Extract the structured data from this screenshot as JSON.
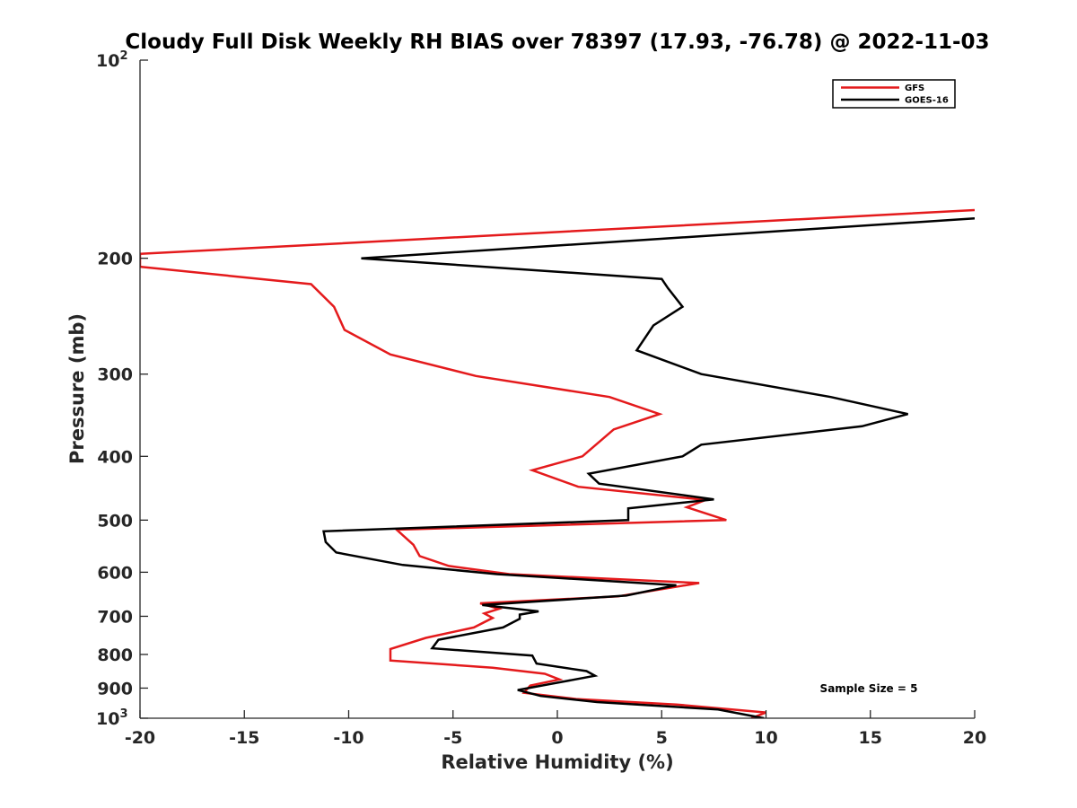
{
  "chart_data": {
    "type": "line",
    "title": "Cloudy Full Disk Weekly RH BIAS over 78397 (17.93, -76.78) @ 2022-11-03",
    "xlabel": "Relative Humidity (%)",
    "ylabel": "Pressure (mb)",
    "xlim": [
      -20,
      20
    ],
    "ylim": [
      100,
      1000
    ],
    "y_scale": "log",
    "y_reversed": true,
    "x_ticks": [
      "-20",
      "-15",
      "-10",
      "-5",
      "0",
      "5",
      "10",
      "15",
      "20"
    ],
    "y_ticks": [
      {
        "value": 100,
        "label": "10",
        "sup": "2"
      },
      {
        "value": 200,
        "label": "200"
      },
      {
        "value": 300,
        "label": "300"
      },
      {
        "value": 400,
        "label": "400"
      },
      {
        "value": 500,
        "label": "500"
      },
      {
        "value": 600,
        "label": "600"
      },
      {
        "value": 700,
        "label": "700"
      },
      {
        "value": 800,
        "label": "800"
      },
      {
        "value": 900,
        "label": "900"
      },
      {
        "value": 1000,
        "label": "10",
        "sup": "3"
      }
    ],
    "grid": false,
    "legend_position": "top-right",
    "annotation": "Sample Size = 5",
    "series": [
      {
        "name": "GFS",
        "color": "#e41a1c",
        "points": [
          [
            20.0,
            169
          ],
          [
            -20.0,
            197
          ],
          [
            -20.0,
            206
          ],
          [
            -11.8,
            219
          ],
          [
            -10.7,
            237
          ],
          [
            -10.2,
            257
          ],
          [
            -8.0,
            280
          ],
          [
            -3.9,
            302
          ],
          [
            2.5,
            325
          ],
          [
            4.9,
            345
          ],
          [
            2.7,
            364
          ],
          [
            1.2,
            400
          ],
          [
            -1.2,
            420
          ],
          [
            1.0,
            445
          ],
          [
            7.1,
            466
          ],
          [
            6.2,
            478
          ],
          [
            8.1,
            500
          ],
          [
            -7.7,
            517
          ],
          [
            -6.9,
            545
          ],
          [
            -6.6,
            567
          ],
          [
            -5.2,
            587
          ],
          [
            -2.3,
            604
          ],
          [
            6.8,
            623
          ],
          [
            2.9,
            653
          ],
          [
            -3.7,
            669
          ],
          [
            -2.8,
            682
          ],
          [
            -3.5,
            693
          ],
          [
            -3.1,
            704
          ],
          [
            -4.0,
            728
          ],
          [
            -6.3,
            755
          ],
          [
            -8.0,
            785
          ],
          [
            -8.0,
            817
          ],
          [
            -3.1,
            838
          ],
          [
            -0.6,
            856
          ],
          [
            0.1,
            873
          ],
          [
            -1.3,
            892
          ],
          [
            -1.6,
            915
          ],
          [
            0.9,
            935
          ],
          [
            5.7,
            953
          ],
          [
            10.0,
            980
          ],
          [
            9.3,
            1000
          ]
        ]
      },
      {
        "name": "GOES-16",
        "color": "#000000",
        "points": [
          [
            20.0,
            174
          ],
          [
            -9.4,
            200
          ],
          [
            5.0,
            215
          ],
          [
            5.3,
            222
          ],
          [
            6.0,
            237
          ],
          [
            4.6,
            253
          ],
          [
            3.8,
            276
          ],
          [
            6.9,
            300
          ],
          [
            13.1,
            325
          ],
          [
            16.8,
            345
          ],
          [
            14.6,
            360
          ],
          [
            6.9,
            384
          ],
          [
            6.0,
            400
          ],
          [
            1.5,
            425
          ],
          [
            2.0,
            440
          ],
          [
            7.5,
            465
          ],
          [
            3.4,
            480
          ],
          [
            3.4,
            500
          ],
          [
            -11.2,
            520
          ],
          [
            -11.1,
            540
          ],
          [
            -10.6,
            560
          ],
          [
            -7.4,
            585
          ],
          [
            -2.9,
            604
          ],
          [
            5.7,
            628
          ],
          [
            3.3,
            651
          ],
          [
            -3.6,
            673
          ],
          [
            -0.9,
            688
          ],
          [
            -1.8,
            696
          ],
          [
            -1.8,
            706
          ],
          [
            -2.6,
            728
          ],
          [
            -5.7,
            760
          ],
          [
            -6.0,
            783
          ],
          [
            -1.2,
            803
          ],
          [
            -1.0,
            826
          ],
          [
            1.4,
            848
          ],
          [
            1.8,
            862
          ],
          [
            -1.9,
            906
          ],
          [
            -0.8,
            925
          ],
          [
            1.9,
            945
          ],
          [
            7.7,
            970
          ],
          [
            9.9,
            1000
          ]
        ]
      }
    ]
  }
}
